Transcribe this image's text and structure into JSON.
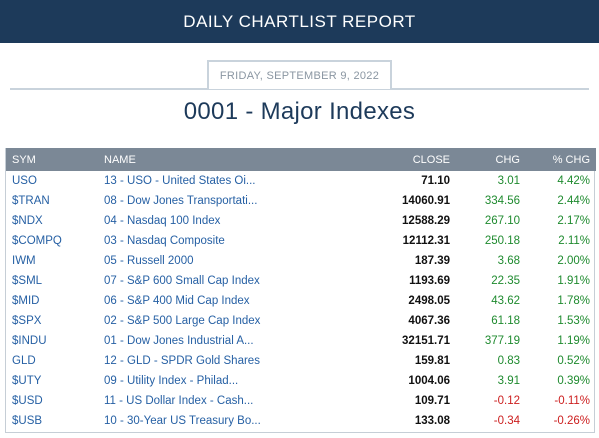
{
  "header": {
    "title": "DAILY CHARTLIST REPORT"
  },
  "report": {
    "date": "FRIDAY, SEPTEMBER 9, 2022",
    "title": "0001 - Major Indexes"
  },
  "table": {
    "columns": {
      "sym": "SYM",
      "name": "NAME",
      "close": "CLOSE",
      "chg": "CHG",
      "pct": "% CHG"
    },
    "rows": [
      {
        "sym": "USO",
        "name": "13 - USO - United States Oi...",
        "close": "71.10",
        "chg": "3.01",
        "pct": "4.42%",
        "dir": "pos"
      },
      {
        "sym": "$TRAN",
        "name": "08 - Dow Jones Transportati...",
        "close": "14060.91",
        "chg": "334.56",
        "pct": "2.44%",
        "dir": "pos"
      },
      {
        "sym": "$NDX",
        "name": "04 - Nasdaq 100 Index",
        "close": "12588.29",
        "chg": "267.10",
        "pct": "2.17%",
        "dir": "pos"
      },
      {
        "sym": "$COMPQ",
        "name": "03 - Nasdaq Composite",
        "close": "12112.31",
        "chg": "250.18",
        "pct": "2.11%",
        "dir": "pos"
      },
      {
        "sym": "IWM",
        "name": "05 - Russell 2000",
        "close": "187.39",
        "chg": "3.68",
        "pct": "2.00%",
        "dir": "pos"
      },
      {
        "sym": "$SML",
        "name": "07 - S&P 600 Small Cap Index",
        "close": "1193.69",
        "chg": "22.35",
        "pct": "1.91%",
        "dir": "pos"
      },
      {
        "sym": "$MID",
        "name": "06 - S&P 400 Mid Cap Index",
        "close": "2498.05",
        "chg": "43.62",
        "pct": "1.78%",
        "dir": "pos"
      },
      {
        "sym": "$SPX",
        "name": "02 - S&P 500 Large Cap Index",
        "close": "4067.36",
        "chg": "61.18",
        "pct": "1.53%",
        "dir": "pos"
      },
      {
        "sym": "$INDU",
        "name": "01 - Dow Jones Industrial A...",
        "close": "32151.71",
        "chg": "377.19",
        "pct": "1.19%",
        "dir": "pos"
      },
      {
        "sym": "GLD",
        "name": "12 - GLD - SPDR Gold Shares",
        "close": "159.81",
        "chg": "0.83",
        "pct": "0.52%",
        "dir": "pos"
      },
      {
        "sym": "$UTY",
        "name": "09 - Utility Index - Philad...",
        "close": "1004.06",
        "chg": "3.91",
        "pct": "0.39%",
        "dir": "pos"
      },
      {
        "sym": "$USD",
        "name": "11 - US Dollar Index - Cash...",
        "close": "109.71",
        "chg": "-0.12",
        "pct": "-0.11%",
        "dir": "neg"
      },
      {
        "sym": "$USB",
        "name": "10 - 30-Year US Treasury Bo...",
        "close": "133.08",
        "chg": "-0.34",
        "pct": "-0.26%",
        "dir": "neg"
      }
    ]
  },
  "colors": {
    "header_bg": "#1d3a5a",
    "table_header_bg": "#7b8896",
    "link": "#2660a4",
    "positive": "#1e8a2e",
    "negative": "#cc1e1e"
  }
}
